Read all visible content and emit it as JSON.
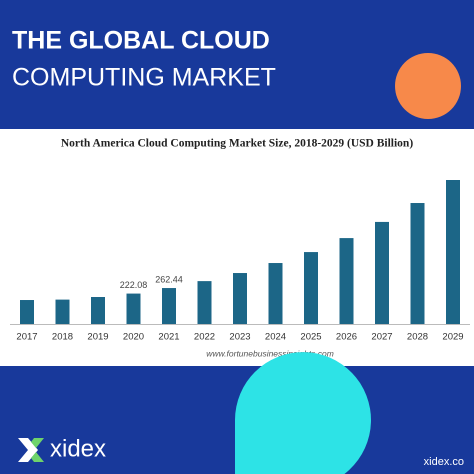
{
  "header": {
    "title_line1": "THE GLOBAL CLOUD",
    "title_line2": "COMPUTING MARKET"
  },
  "chart_data": {
    "type": "bar",
    "title": "North America Cloud Computing Market Size, 2018-2029 (USD Billion)",
    "categories": [
      "2017",
      "2018",
      "2019",
      "2020",
      "2021",
      "2022",
      "2023",
      "2024",
      "2025",
      "2026",
      "2027",
      "2028",
      "2029"
    ],
    "values": [
      175,
      178,
      197,
      222.08,
      262.44,
      313,
      372,
      445,
      525,
      627,
      745,
      883,
      1051
    ],
    "value_labels": [
      null,
      null,
      null,
      "222.08",
      "262.44",
      null,
      null,
      null,
      null,
      null,
      null,
      null,
      null
    ],
    "color": "#1c6687",
    "source": "www.fortunebusinessinsights.com"
  },
  "footer": {
    "brand": "xidex",
    "website": "xidex.co"
  }
}
